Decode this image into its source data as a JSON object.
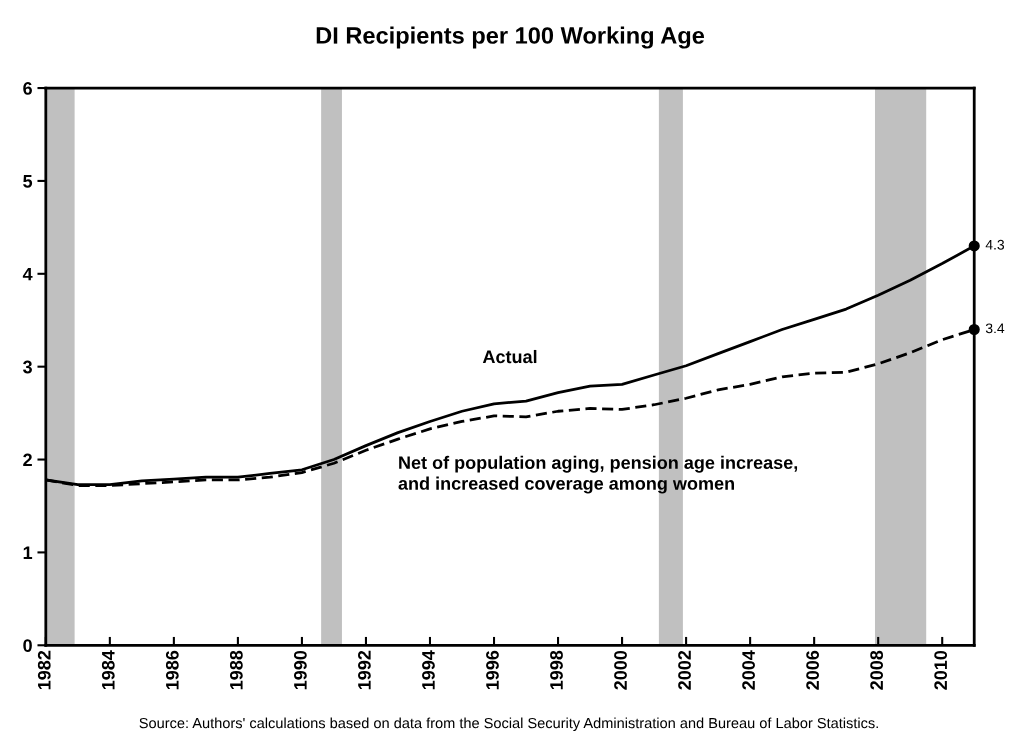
{
  "chart_data": {
    "type": "line",
    "title": "DI Recipients per 100 Working Age",
    "x": [
      1982,
      1983,
      1984,
      1985,
      1986,
      1987,
      1988,
      1989,
      1990,
      1991,
      1992,
      1993,
      1994,
      1995,
      1996,
      1997,
      1998,
      1999,
      2000,
      2001,
      2002,
      2003,
      2004,
      2005,
      2006,
      2007,
      2008,
      2009,
      2010,
      2011
    ],
    "series": [
      {
        "name": "Actual",
        "color": "#000000",
        "line_style": "solid",
        "values": [
          1.78,
          1.73,
          1.73,
          1.77,
          1.79,
          1.81,
          1.81,
          1.85,
          1.89,
          2.0,
          2.15,
          2.29,
          2.41,
          2.52,
          2.6,
          2.63,
          2.72,
          2.79,
          2.81,
          2.91,
          3.01,
          3.14,
          3.27,
          3.4,
          3.51,
          3.62,
          3.77,
          3.93,
          4.11,
          4.3
        ],
        "value_labels": [
          null,
          null,
          null,
          null,
          null,
          null,
          null,
          null,
          null,
          null,
          null,
          null,
          null,
          null,
          null,
          null,
          null,
          null,
          null,
          null,
          null,
          null,
          null,
          null,
          null,
          null,
          null,
          null,
          null,
          "4.3"
        ]
      },
      {
        "name": "Net of population aging, pension age increase,\nand increased coverage among women",
        "color": "#000000",
        "line_style": "dashed",
        "values": [
          1.78,
          1.72,
          1.72,
          1.74,
          1.76,
          1.78,
          1.78,
          1.81,
          1.86,
          1.96,
          2.1,
          2.22,
          2.33,
          2.41,
          2.47,
          2.46,
          2.52,
          2.55,
          2.54,
          2.59,
          2.66,
          2.75,
          2.81,
          2.89,
          2.93,
          2.94,
          3.03,
          3.15,
          3.29,
          3.4
        ],
        "value_labels": [
          null,
          null,
          null,
          null,
          null,
          null,
          null,
          null,
          null,
          null,
          null,
          null,
          null,
          null,
          null,
          null,
          null,
          null,
          null,
          null,
          null,
          null,
          null,
          null,
          null,
          null,
          null,
          null,
          null,
          "3.4"
        ]
      }
    ],
    "xlim": [
      1982,
      2011
    ],
    "xticks": [
      1982,
      1984,
      1986,
      1988,
      1990,
      1992,
      1994,
      1996,
      1998,
      2000,
      2002,
      2004,
      2006,
      2008,
      2010
    ],
    "ylim": [
      0,
      6
    ],
    "yticks": [
      0,
      1,
      2,
      3,
      4,
      5,
      6
    ],
    "bands": [
      {
        "axis": "x",
        "from": 1982.0,
        "to": 1982.9,
        "color": "#c0c0c0"
      },
      {
        "axis": "x",
        "from": 1990.6,
        "to": 1991.25,
        "color": "#c0c0c0"
      },
      {
        "axis": "x",
        "from": 2001.15,
        "to": 2001.9,
        "color": "#c0c0c0"
      },
      {
        "axis": "x",
        "from": 2007.9,
        "to": 2009.5,
        "color": "#c0c0c0"
      }
    ],
    "grid": false,
    "legend": false,
    "annotations": [
      "Source: Authors' calculations based on data from the Social Security Administration and Bureau of Labor Statistics."
    ]
  }
}
